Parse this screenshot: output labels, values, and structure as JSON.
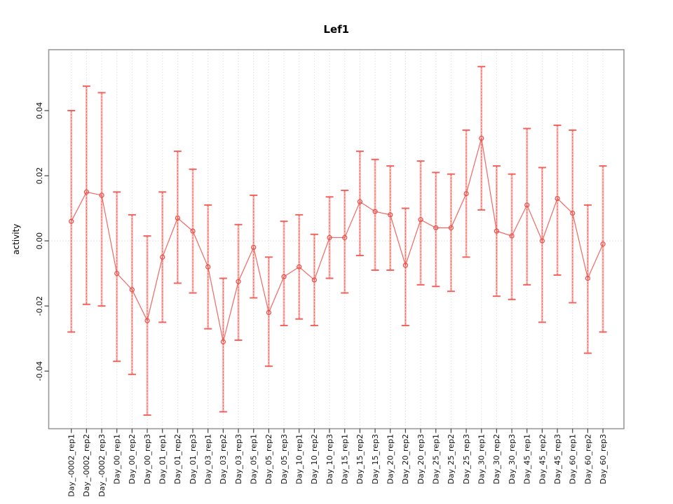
{
  "chart_data": {
    "type": "line",
    "title": "Lef1",
    "xlabel": "",
    "ylabel": "activity",
    "ylim": [
      -0.0577,
      0.0587
    ],
    "yticks": [
      -0.04,
      -0.02,
      0.0,
      0.02,
      0.04
    ],
    "ytick_labels": [
      "-0.04",
      "-0.02",
      "0.00",
      "0.02",
      "0.04"
    ],
    "grid": "vertical-dotted",
    "zero_reference_line": true,
    "legend": null,
    "marker": "open-circle",
    "error_bars": true,
    "categories": [
      "Day_-0002_rep1",
      "Day_-0002_rep2",
      "Day_-0002_rep3",
      "Day_00_rep1",
      "Day_00_rep2",
      "Day_00_rep3",
      "Day_01_rep1",
      "Day_01_rep2",
      "Day_01_rep3",
      "Day_03_rep1",
      "Day_03_rep2",
      "Day_03_rep3",
      "Day_05_rep1",
      "Day_05_rep2",
      "Day_05_rep3",
      "Day_10_rep1",
      "Day_10_rep2",
      "Day_10_rep3",
      "Day_15_rep1",
      "Day_15_rep2",
      "Day_15_rep3",
      "Day_20_rep1",
      "Day_20_rep2",
      "Day_20_rep3",
      "Day_25_rep1",
      "Day_25_rep2",
      "Day_25_rep3",
      "Day_30_rep1",
      "Day_30_rep2",
      "Day_30_rep3",
      "Day_45_rep1",
      "Day_45_rep2",
      "Day_45_rep3",
      "Day_60_rep1",
      "Day_60_rep2",
      "Day_60_rep3"
    ],
    "series": [
      {
        "name": "activity",
        "values": [
          0.006,
          0.015,
          0.014,
          -0.01,
          -0.015,
          -0.0245,
          -0.005,
          0.007,
          0.003,
          -0.008,
          -0.031,
          -0.0125,
          -0.002,
          -0.022,
          -0.011,
          -0.008,
          -0.012,
          0.001,
          0.001,
          0.012,
          0.009,
          0.008,
          -0.0075,
          0.0065,
          0.004,
          0.004,
          0.0145,
          0.0315,
          0.003,
          0.0015,
          0.011,
          0.0,
          0.013,
          0.0085,
          -0.0115,
          -0.001
        ],
        "lower": [
          -0.028,
          -0.0195,
          -0.02,
          -0.037,
          -0.041,
          -0.0535,
          -0.025,
          -0.013,
          -0.016,
          -0.027,
          -0.0525,
          -0.0305,
          -0.0175,
          -0.0385,
          -0.026,
          -0.024,
          -0.026,
          -0.0115,
          -0.016,
          -0.0045,
          -0.009,
          -0.009,
          -0.026,
          -0.0135,
          -0.014,
          -0.0155,
          -0.005,
          0.0095,
          -0.017,
          -0.018,
          -0.0135,
          -0.025,
          -0.0105,
          -0.019,
          -0.0345,
          -0.028
        ],
        "upper": [
          0.04,
          0.0475,
          0.0455,
          0.015,
          0.008,
          0.0015,
          0.015,
          0.0275,
          0.022,
          0.011,
          -0.0115,
          0.005,
          0.014,
          -0.005,
          0.006,
          0.008,
          0.002,
          0.0135,
          0.0155,
          0.0275,
          0.025,
          0.023,
          0.01,
          0.0245,
          0.021,
          0.0205,
          0.034,
          0.0535,
          0.023,
          0.0205,
          0.0345,
          0.0225,
          0.0355,
          0.034,
          0.011,
          0.023
        ]
      }
    ],
    "colors": {
      "error_bar_pale": "#f87f79",
      "error_bar_line": "#ee5a54",
      "error_cap": "#f2544e",
      "series_line": "#ef5650",
      "point_stroke": "#ec4b46",
      "grid": "#d6d6d6",
      "zero_line": "#c9c9c9",
      "plot_border": "#999999",
      "tick": "#404040",
      "text": "#000000"
    }
  }
}
